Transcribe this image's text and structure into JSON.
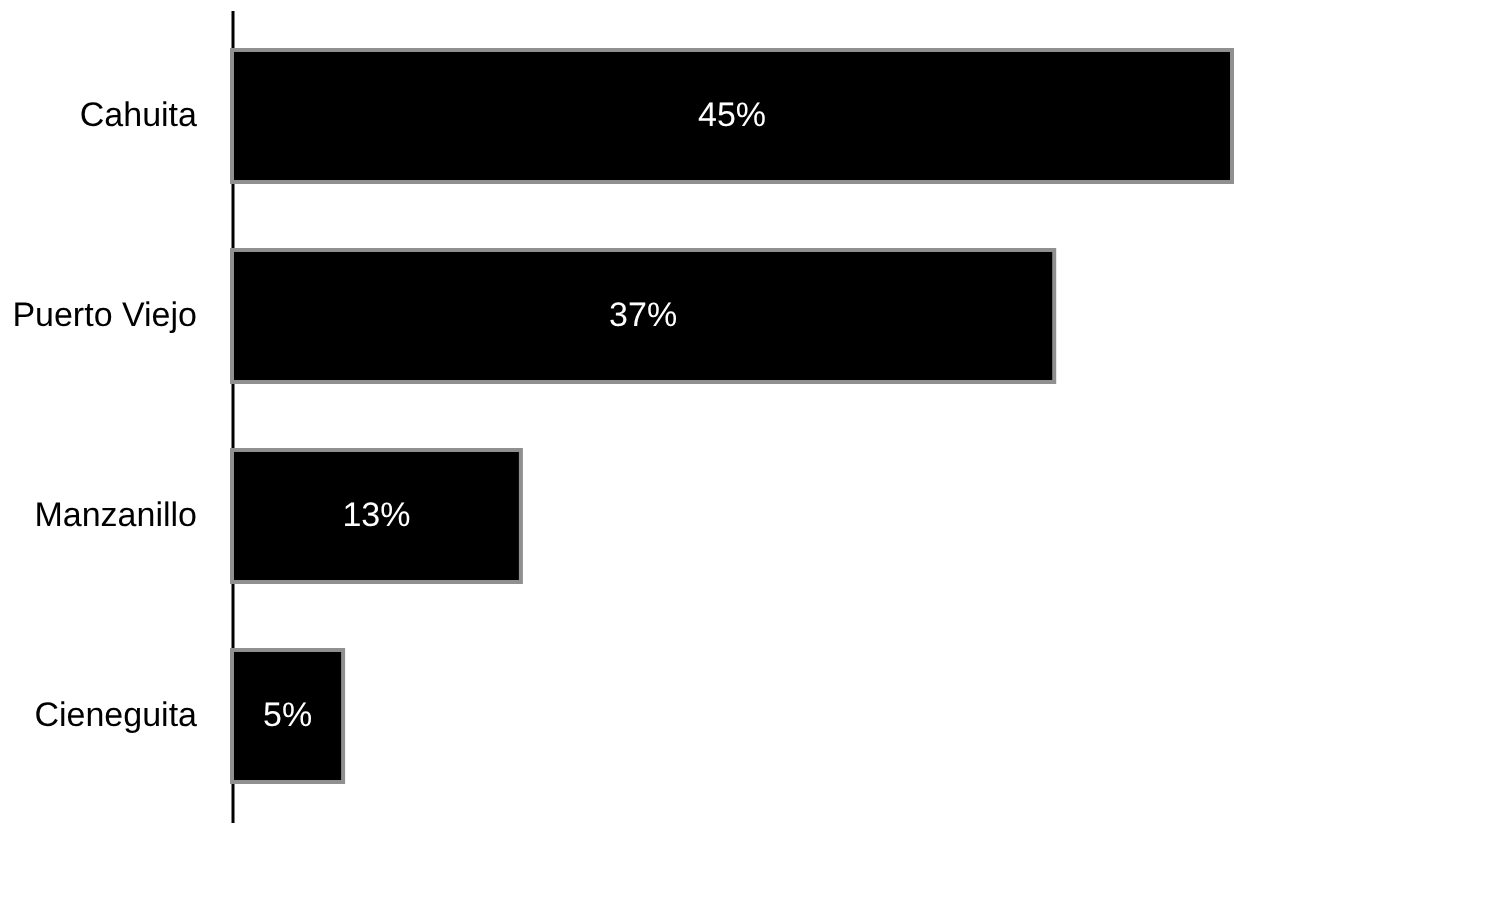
{
  "chart_data": {
    "type": "bar",
    "orientation": "horizontal",
    "categories": [
      "Cahuita",
      "Puerto Viejo",
      "Manzanillo",
      "Cieneguita"
    ],
    "values": [
      45,
      37,
      13,
      5
    ],
    "value_labels": [
      "45%",
      "37%",
      "13%",
      "5%"
    ],
    "color": "#000000"
  }
}
